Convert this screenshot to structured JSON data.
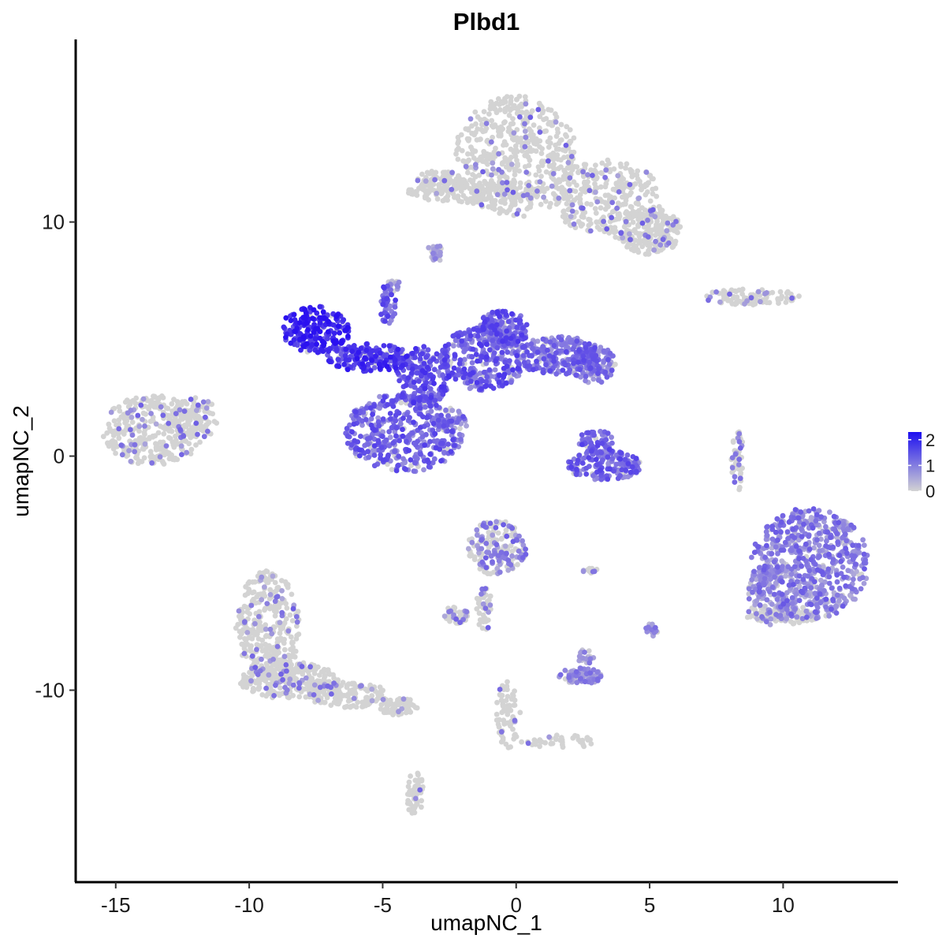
{
  "chart_data": {
    "type": "scatter",
    "title": "Plbd1",
    "xlabel": "umapNC_1",
    "ylabel": "umapNC_2",
    "xlim": [
      -16.5,
      14.3
    ],
    "ylim": [
      -18.2,
      17.8
    ],
    "xticks": [
      -15,
      -10,
      -5,
      0,
      5,
      10
    ],
    "xtick_labels": [
      "-15",
      "-10",
      "-5",
      "0",
      "5",
      "10"
    ],
    "yticks": [
      -10,
      0,
      10
    ],
    "ytick_labels": [
      "-10",
      "0",
      "10"
    ],
    "grid": false,
    "legend": {
      "position": "right",
      "type": "colorbar",
      "range": [
        0,
        2.3
      ],
      "ticks": [
        0,
        1,
        2
      ],
      "tick_labels": [
        "0",
        "1",
        "2"
      ],
      "low_color": "#d3d3d3",
      "high_color": "#1d0ff0"
    },
    "colors": {
      "low": "#d3d3d3",
      "high": "#2a10f0"
    },
    "clusters": [
      {
        "cx": 0.0,
        "cy": 12.8,
        "rx": 2.3,
        "ry": 2.6,
        "n": 520,
        "expr": 0.08
      },
      {
        "cx": 3.4,
        "cy": 11.0,
        "rx": 2.0,
        "ry": 1.7,
        "n": 320,
        "expr": 0.08
      },
      {
        "cx": 5.0,
        "cy": 9.6,
        "rx": 1.2,
        "ry": 1.0,
        "n": 200,
        "expr": 0.1
      },
      {
        "cx": -1.5,
        "cy": 11.3,
        "rx": 2.6,
        "ry": 0.5,
        "n": 160,
        "expr": 0.05
      },
      {
        "cx": -2.8,
        "cy": 11.7,
        "rx": 1.0,
        "ry": 0.5,
        "n": 70,
        "expr": 0.08
      },
      {
        "cx": 8.8,
        "cy": 6.8,
        "rx": 1.8,
        "ry": 0.35,
        "n": 90,
        "expr": 0.1
      },
      {
        "cx": -13.6,
        "cy": 1.1,
        "rx": 1.9,
        "ry": 1.5,
        "n": 330,
        "expr": 0.1
      },
      {
        "cx": -12.0,
        "cy": 1.6,
        "rx": 0.9,
        "ry": 0.9,
        "n": 90,
        "expr": 0.1
      },
      {
        "cx": -7.5,
        "cy": 5.4,
        "rx": 1.3,
        "ry": 1.0,
        "n": 230,
        "expr": 1.9
      },
      {
        "cx": -5.5,
        "cy": 4.2,
        "rx": 1.6,
        "ry": 0.6,
        "n": 180,
        "expr": 1.7
      },
      {
        "cx": -4.2,
        "cy": 1.0,
        "rx": 2.2,
        "ry": 1.7,
        "n": 430,
        "expr": 1.2
      },
      {
        "cx": -3.5,
        "cy": 3.4,
        "rx": 1.0,
        "ry": 1.3,
        "n": 200,
        "expr": 1.4
      },
      {
        "cx": -1.2,
        "cy": 4.2,
        "rx": 1.6,
        "ry": 1.4,
        "n": 300,
        "expr": 1.3
      },
      {
        "cx": -0.5,
        "cy": 5.4,
        "rx": 1.0,
        "ry": 0.8,
        "n": 170,
        "expr": 1.3
      },
      {
        "cx": 1.6,
        "cy": 4.3,
        "rx": 1.7,
        "ry": 0.8,
        "n": 260,
        "expr": 1.1
      },
      {
        "cx": 2.9,
        "cy": 3.9,
        "rx": 0.9,
        "ry": 0.8,
        "n": 130,
        "expr": 1.0
      },
      {
        "cx": 3.3,
        "cy": -0.4,
        "rx": 1.4,
        "ry": 0.65,
        "n": 170,
        "expr": 1.2
      },
      {
        "cx": 3.0,
        "cy": 0.6,
        "rx": 0.7,
        "ry": 0.5,
        "n": 60,
        "expr": 1.2
      },
      {
        "cx": -4.8,
        "cy": 6.5,
        "rx": 0.3,
        "ry": 0.9,
        "n": 40,
        "expr": 1.3
      },
      {
        "cx": -2.5,
        "cy": 1.5,
        "rx": 0.7,
        "ry": 0.5,
        "n": 40,
        "expr": 1.0
      },
      {
        "cx": -4.6,
        "cy": 7.3,
        "rx": 0.3,
        "ry": 0.2,
        "n": 15,
        "expr": 0.5
      },
      {
        "cx": -3.0,
        "cy": 8.8,
        "rx": 0.3,
        "ry": 0.3,
        "n": 15,
        "expr": 0.5
      },
      {
        "cx": 11.0,
        "cy": -4.6,
        "rx": 2.2,
        "ry": 2.4,
        "n": 650,
        "expr": 0.9
      },
      {
        "cx": 9.6,
        "cy": -5.8,
        "rx": 0.9,
        "ry": 1.5,
        "n": 120,
        "expr": 0.6
      },
      {
        "cx": 10.0,
        "cy": -6.8,
        "rx": 1.4,
        "ry": 0.4,
        "n": 100,
        "expr": 0.1
      },
      {
        "cx": 8.3,
        "cy": -0.2,
        "rx": 0.25,
        "ry": 1.3,
        "n": 50,
        "expr": 0.2
      },
      {
        "cx": -9.3,
        "cy": -7.3,
        "rx": 1.2,
        "ry": 2.4,
        "n": 330,
        "expr": 0.1
      },
      {
        "cx": -8.5,
        "cy": -9.6,
        "rx": 1.9,
        "ry": 0.8,
        "n": 250,
        "expr": 0.12
      },
      {
        "cx": -6.3,
        "cy": -10.2,
        "rx": 1.5,
        "ry": 0.55,
        "n": 140,
        "expr": 0.1
      },
      {
        "cx": -4.4,
        "cy": -10.7,
        "rx": 0.7,
        "ry": 0.4,
        "n": 60,
        "expr": 0.1
      },
      {
        "cx": -3.8,
        "cy": -14.4,
        "rx": 0.35,
        "ry": 0.9,
        "n": 60,
        "expr": 0.05
      },
      {
        "cx": -0.7,
        "cy": -3.9,
        "rx": 1.1,
        "ry": 1.2,
        "n": 180,
        "expr": 0.3
      },
      {
        "cx": -1.2,
        "cy": -6.5,
        "rx": 0.3,
        "ry": 1.0,
        "n": 40,
        "expr": 0.2
      },
      {
        "cx": -2.3,
        "cy": -6.8,
        "rx": 0.5,
        "ry": 0.35,
        "n": 50,
        "expr": 0.2
      },
      {
        "cx": -0.3,
        "cy": -11.0,
        "rx": 0.45,
        "ry": 1.5,
        "n": 70,
        "expr": 0.05
      },
      {
        "cx": 1.6,
        "cy": -12.2,
        "rx": 1.4,
        "ry": 0.3,
        "n": 40,
        "expr": 0.05
      },
      {
        "cx": 2.4,
        "cy": -9.4,
        "rx": 0.8,
        "ry": 0.35,
        "n": 90,
        "expr": 0.7
      },
      {
        "cx": 2.6,
        "cy": -8.6,
        "rx": 0.3,
        "ry": 0.35,
        "n": 20,
        "expr": 0.6
      },
      {
        "cx": 5.1,
        "cy": -7.4,
        "rx": 0.25,
        "ry": 0.3,
        "n": 20,
        "expr": 0.8
      },
      {
        "cx": 2.8,
        "cy": -4.9,
        "rx": 0.3,
        "ry": 0.1,
        "n": 12,
        "expr": 0.3
      },
      {
        "cx": -3.0,
        "cy": 8.5,
        "rx": 0.2,
        "ry": 0.2,
        "n": 10,
        "expr": 0.5
      }
    ]
  }
}
